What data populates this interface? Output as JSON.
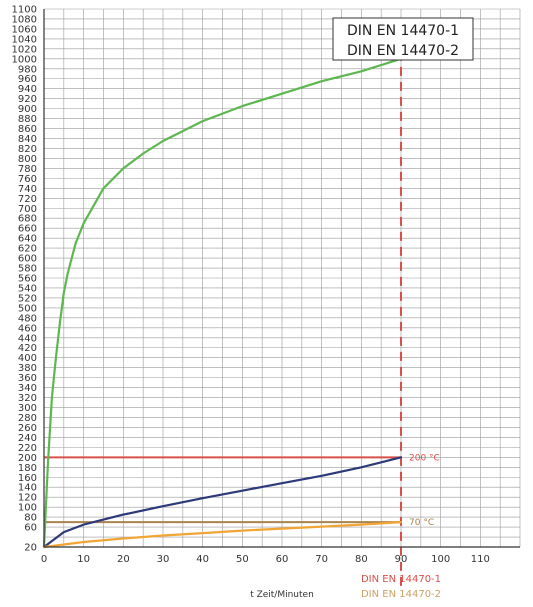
{
  "chart_data": {
    "type": "line",
    "xlabel": "t Zeit/Minuten",
    "ylabel": "",
    "xlim": [
      0,
      120
    ],
    "ylim": [
      20,
      1100
    ],
    "x_ticks": [
      0,
      10,
      20,
      30,
      40,
      50,
      60,
      70,
      80,
      90,
      100,
      110
    ],
    "y_ticks": [
      20,
      60,
      80,
      100,
      120,
      140,
      160,
      180,
      200,
      220,
      240,
      260,
      280,
      300,
      320,
      340,
      360,
      380,
      400,
      420,
      440,
      460,
      480,
      500,
      520,
      540,
      560,
      580,
      600,
      620,
      640,
      660,
      680,
      700,
      720,
      740,
      760,
      780,
      800,
      820,
      840,
      860,
      880,
      900,
      920,
      940,
      960,
      980,
      1000,
      1020,
      1040,
      1060,
      1080,
      1100
    ],
    "y_tick_labels": [
      "20",
      "60",
      "80",
      "100",
      "120",
      "140",
      "160",
      "180",
      "200",
      "220",
      "240",
      "260",
      "280",
      "300",
      "320",
      "340",
      "360",
      "380",
      "400",
      "420",
      "440",
      "460",
      "480",
      "500",
      "520",
      "540",
      "560",
      "580",
      "600",
      "620",
      "640",
      "660",
      "680",
      "700",
      "720",
      "740",
      "760",
      "780",
      "800",
      "820",
      "840",
      "860",
      "880",
      "900",
      "920",
      "940",
      "960",
      "980",
      "1000",
      "1020",
      "1040",
      "1060",
      "1080",
      "1100"
    ],
    "grid": true,
    "series": [
      {
        "color": "#5cb84e",
        "x": [
          0,
          1,
          2,
          3,
          4,
          5,
          6,
          8,
          10,
          15,
          20,
          25,
          30,
          40,
          50,
          60,
          70,
          80,
          90
        ],
        "y": [
          20,
          190,
          320,
          400,
          470,
          530,
          570,
          630,
          670,
          740,
          780,
          810,
          835,
          875,
          905,
          930,
          955,
          975,
          1000
        ]
      },
      {
        "color": "#2c3a7a",
        "x": [
          0,
          5,
          10,
          15,
          20,
          30,
          40,
          50,
          60,
          70,
          80,
          90
        ],
        "y": [
          20,
          50,
          65,
          75,
          85,
          102,
          118,
          133,
          148,
          163,
          180,
          200
        ]
      },
      {
        "color": "#f0a535",
        "x": [
          0,
          10,
          20,
          30,
          40,
          50,
          60,
          70,
          80,
          90
        ],
        "y": [
          20,
          30,
          37,
          43,
          48,
          53,
          57,
          61,
          65,
          70
        ]
      }
    ],
    "reference_lines": [
      {
        "y": 200,
        "label": "200 °C",
        "color": "#d9504a"
      },
      {
        "y": 70,
        "label": "70 °C",
        "color": "#a8834e"
      }
    ],
    "vertical_line": {
      "x": 90,
      "color": "#d9504a"
    },
    "legend": [
      "DIN EN 14470-1",
      "DIN EN 14470-2"
    ],
    "footer_labels": [
      {
        "text": "DIN EN 14470-1",
        "color": "#d9504a"
      },
      {
        "text": "DIN EN 14470-2",
        "color": "#c9a265"
      }
    ]
  }
}
